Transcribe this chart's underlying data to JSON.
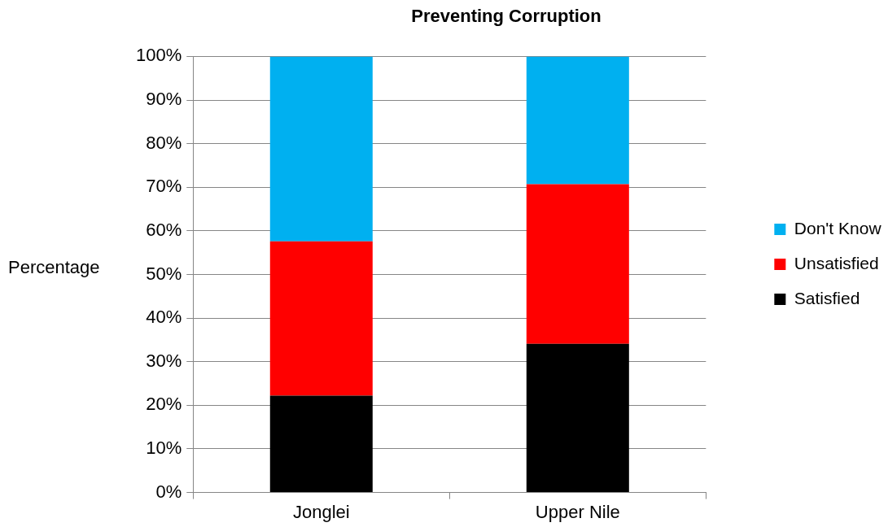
{
  "chart_data": {
    "type": "bar",
    "title": "Preventing Corruption",
    "ylabel": "Percentage",
    "categories": [
      "Jonglei",
      "Upper Nile"
    ],
    "series": [
      {
        "name": "Satisfied",
        "color": "#000000",
        "values": [
          22.2,
          34.1
        ]
      },
      {
        "name": "Unsatisfied",
        "color": "#ff0000",
        "values": [
          35.4,
          36.6
        ]
      },
      {
        "name": "Don't Know",
        "color": "#00b0f0",
        "values": [
          42.4,
          29.3
        ]
      }
    ],
    "stacked": true,
    "ylim": [
      0,
      100
    ],
    "yticks": [
      {
        "value": 0,
        "label": "0%"
      },
      {
        "value": 10,
        "label": "10%"
      },
      {
        "value": 20,
        "label": "20%"
      },
      {
        "value": 30,
        "label": "30%"
      },
      {
        "value": 40,
        "label": "40%"
      },
      {
        "value": 50,
        "label": "50%"
      },
      {
        "value": 60,
        "label": "60%"
      },
      {
        "value": 70,
        "label": "70%"
      },
      {
        "value": 80,
        "label": "80%"
      },
      {
        "value": 90,
        "label": "90%"
      },
      {
        "value": 100,
        "label": "100%"
      }
    ],
    "grid": "y",
    "legend": "right"
  }
}
